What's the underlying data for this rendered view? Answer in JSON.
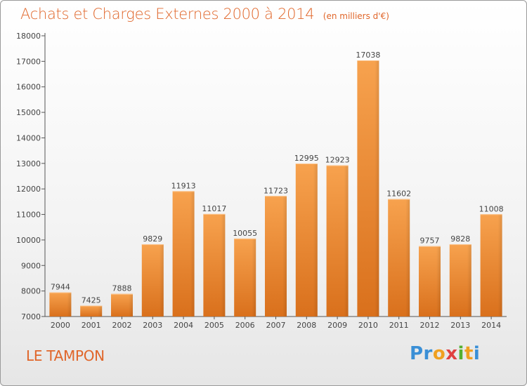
{
  "chart_data": {
    "type": "bar",
    "title": "Achats et Charges Externes 2000 à 2014",
    "subtitle": "(en milliers d'€)",
    "categories": [
      "2000",
      "2001",
      "2002",
      "2003",
      "2004",
      "2005",
      "2006",
      "2007",
      "2008",
      "2009",
      "2010",
      "2011",
      "2012",
      "2013",
      "2014"
    ],
    "values": [
      7944,
      7425,
      7888,
      9829,
      11913,
      11017,
      10055,
      11723,
      12995,
      12923,
      17038,
      11602,
      9757,
      9828,
      11008
    ],
    "ylim": [
      7000,
      18000
    ],
    "yticks": [
      7000,
      8000,
      9000,
      10000,
      11000,
      12000,
      13000,
      14000,
      15000,
      16000,
      17000,
      18000
    ],
    "grid": false,
    "bar_color": "#f08a2c",
    "xlabel": "",
    "ylabel": ""
  },
  "location": "LE TAMPON",
  "logo": {
    "parts": [
      {
        "text": "Pr",
        "color": "#3a8fd6"
      },
      {
        "text": "o",
        "color": "#f0a020"
      },
      {
        "text": "x",
        "color": "#e04040"
      },
      {
        "text": "i",
        "color": "#55b030"
      },
      {
        "text": "t",
        "color": "#f0a020"
      },
      {
        "text": "i",
        "color": "#3a8fd6"
      }
    ]
  }
}
